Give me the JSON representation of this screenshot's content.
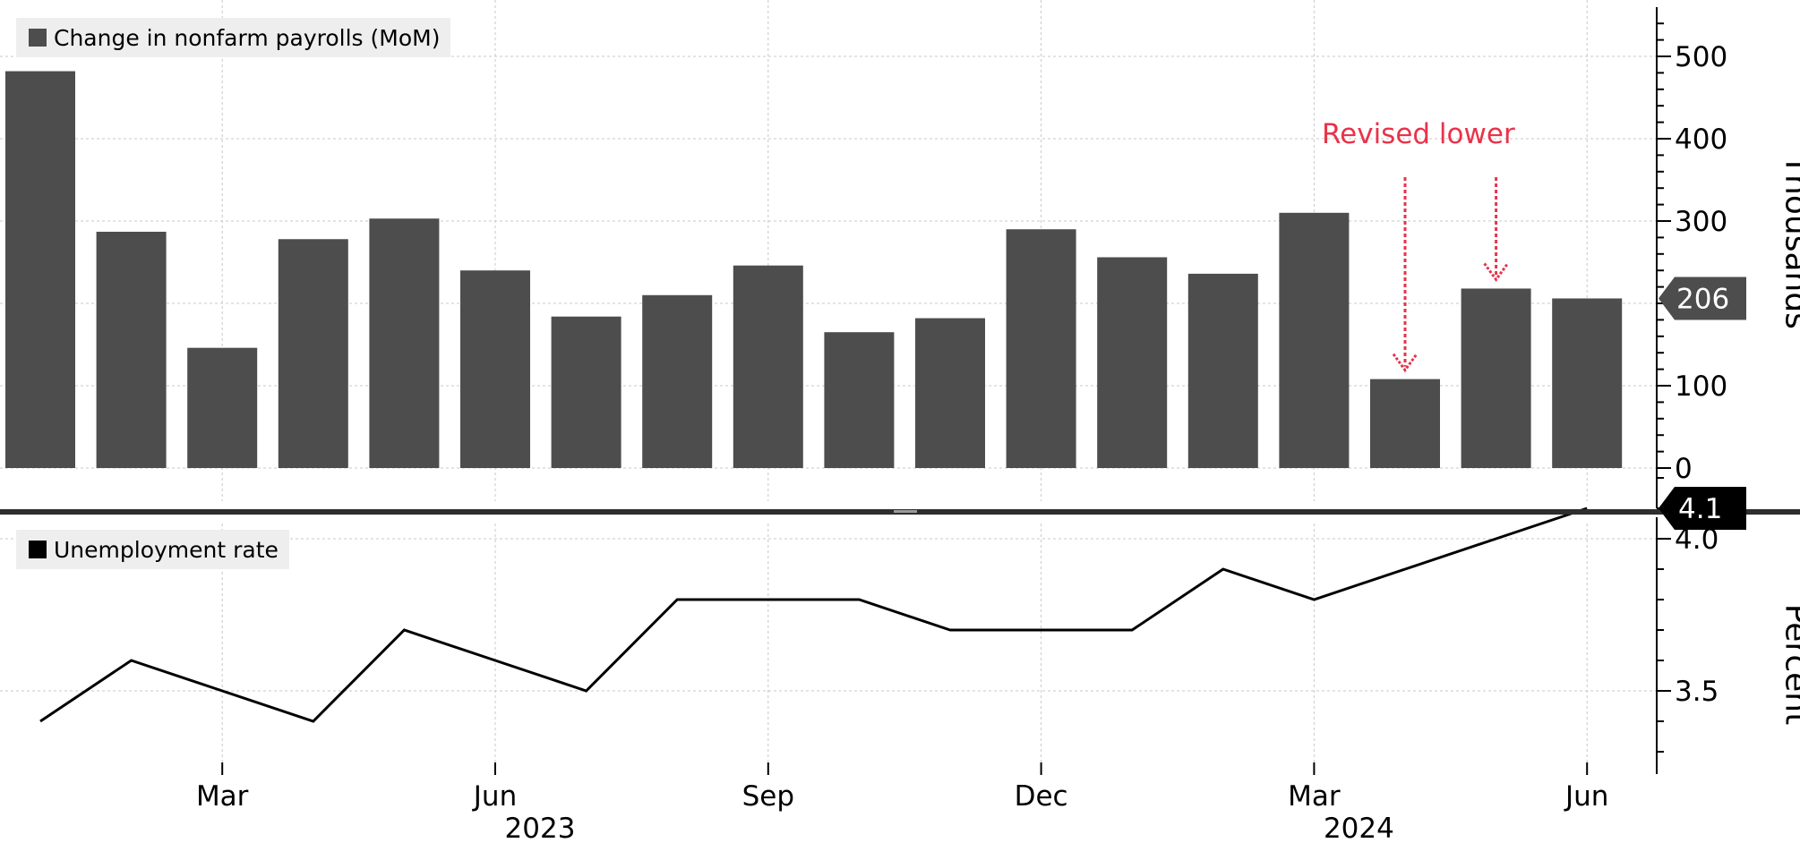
{
  "chart_data": [
    {
      "type": "bar",
      "legend": "Change in nonfarm payrolls (MoM)",
      "ylabel": "Thousands",
      "ylim": [
        0,
        550
      ],
      "yticks": [
        "0",
        "100",
        "200",
        "300",
        "400",
        "500"
      ],
      "categories": [
        "2023-01",
        "2023-02",
        "2023-03",
        "2023-04",
        "2023-05",
        "2023-06",
        "2023-07",
        "2023-08",
        "2023-09",
        "2023-10",
        "2023-11",
        "2023-12",
        "2024-01",
        "2024-02",
        "2024-03",
        "2024-04",
        "2024-05",
        "2024-06"
      ],
      "values": [
        482,
        287,
        146,
        278,
        303,
        240,
        184,
        210,
        246,
        165,
        182,
        290,
        256,
        236,
        310,
        108,
        218,
        206
      ],
      "last_value_label": "206",
      "annotation": "Revised lower",
      "annotated_months": [
        "2024-04",
        "2024-05"
      ],
      "bar_color": "#4d4d4d",
      "annotation_color": "#e8334a",
      "grid": true
    },
    {
      "type": "line",
      "legend": "Unemployment rate",
      "ylabel": "Percent",
      "ylim": [
        3.3,
        4.25
      ],
      "yticks": [
        "3.5",
        "4.0"
      ],
      "x": [
        "2023-01",
        "2023-02",
        "2023-03",
        "2023-04",
        "2023-05",
        "2023-06",
        "2023-07",
        "2023-08",
        "2023-09",
        "2023-10",
        "2023-11",
        "2023-12",
        "2024-01",
        "2024-02",
        "2024-03",
        "2024-04",
        "2024-05",
        "2024-06"
      ],
      "values": [
        3.4,
        3.6,
        3.5,
        3.4,
        3.7,
        3.6,
        3.5,
        3.8,
        3.8,
        3.8,
        3.7,
        3.7,
        3.7,
        3.9,
        3.8,
        3.9,
        4.0,
        4.1
      ],
      "last_value_label": "4.1",
      "line_color": "#000000",
      "grid": true
    }
  ],
  "x_axis": {
    "ticks": [
      {
        "month": "2023-03",
        "label": "Mar"
      },
      {
        "month": "2023-06",
        "label": "Jun"
      },
      {
        "month": "2023-09",
        "label": "Sep"
      },
      {
        "month": "2023-12",
        "label": "Dec"
      },
      {
        "month": "2024-03",
        "label": "Mar"
      },
      {
        "month": "2024-06",
        "label": "Jun"
      }
    ],
    "years": [
      {
        "month": "2023-06",
        "label": "2023"
      },
      {
        "month": "2024-03",
        "label": "2024"
      }
    ]
  }
}
